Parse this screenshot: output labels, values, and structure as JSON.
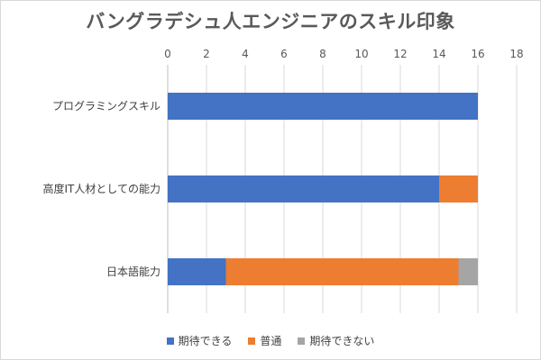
{
  "chart_data": {
    "type": "bar",
    "orientation": "horizontal",
    "stacked": true,
    "title": "バングラデシュ人エンジニアのスキル印象",
    "categories": [
      "プログラミングスキル",
      "高度IT人材としての能力",
      "日本語能力"
    ],
    "series": [
      {
        "name": "期待できる",
        "color": "#4472C4",
        "values": [
          16,
          14,
          3
        ]
      },
      {
        "name": "普通",
        "color": "#ED7D31",
        "values": [
          0,
          2,
          12
        ]
      },
      {
        "name": "期待できない",
        "color": "#A5A5A5",
        "values": [
          0,
          0,
          1
        ]
      }
    ],
    "xlim": [
      0,
      18
    ],
    "xticks": [
      0,
      2,
      4,
      6,
      8,
      10,
      12,
      14,
      16,
      18
    ],
    "grid": true,
    "legend": "bottom",
    "axis_position": "top"
  }
}
